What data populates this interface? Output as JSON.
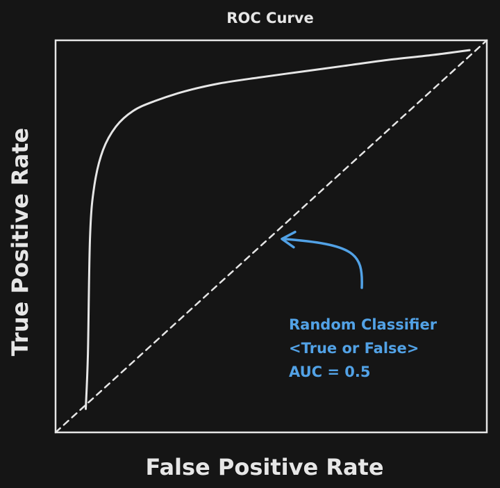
{
  "chart_data": {
    "type": "line",
    "title": "ROC Curve",
    "xlabel": "False Positive Rate",
    "ylabel": "True Positive Rate",
    "xlim": [
      0,
      1
    ],
    "ylim": [
      0,
      1
    ],
    "grid": false,
    "series": [
      {
        "x": [
          0.07,
          0.075,
          0.08,
          0.09,
          0.11,
          0.14,
          0.18,
          0.23,
          0.3,
          0.38,
          0.47,
          0.57,
          0.67,
          0.77,
          0.87,
          0.96
        ],
        "y": [
          0.06,
          0.2,
          0.5,
          0.63,
          0.72,
          0.78,
          0.82,
          0.845,
          0.87,
          0.89,
          0.905,
          0.92,
          0.935,
          0.95,
          0.962,
          0.975
        ],
        "color": "#e6e6e6"
      },
      {
        "x": [
          0,
          1
        ],
        "y": [
          0,
          1
        ],
        "color": "#e6e6e6",
        "style": "dashed"
      }
    ],
    "annotations": [
      {
        "lines": [
          "Random Classifier",
          "<True or False>",
          "AUC = 0.5"
        ],
        "color": "#52a2e6",
        "points_to": {
          "x": 0.52,
          "y": 0.49
        }
      }
    ]
  }
}
